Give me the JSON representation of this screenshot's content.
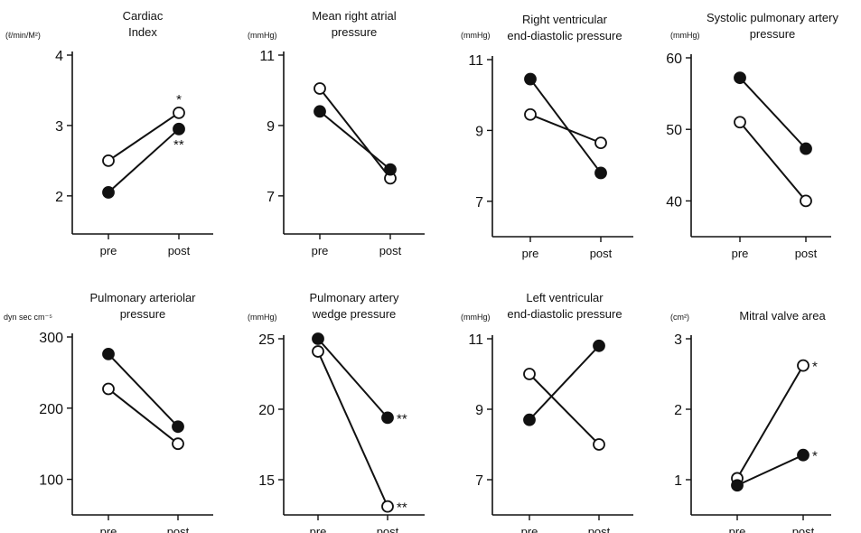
{
  "chart_data": [
    {
      "type": "line",
      "title": "Cardiac Index",
      "title_lines": [
        "Cardiac",
        "Index"
      ],
      "unit": "(ℓ/min/M²)",
      "x": [
        "pre",
        "post"
      ],
      "ylim": [
        1.6,
        4
      ],
      "yticks": [
        2,
        3,
        4
      ],
      "series": [
        {
          "marker": "open",
          "values": [
            2.5,
            3.18
          ],
          "annotation": "*"
        },
        {
          "marker": "filled",
          "values": [
            2.05,
            2.95
          ],
          "annotation": "**"
        }
      ]
    },
    {
      "type": "line",
      "title": "Mean right atrial pressure",
      "title_lines": [
        "Mean right atrial",
        "pressure"
      ],
      "unit": "(mmHg)",
      "x": [
        "pre",
        "post"
      ],
      "ylim": [
        6.2,
        11
      ],
      "yticks": [
        7,
        9,
        11
      ],
      "series": [
        {
          "marker": "open",
          "values": [
            10.05,
            7.5
          ],
          "annotation": ""
        },
        {
          "marker": "filled",
          "values": [
            9.4,
            7.75
          ],
          "annotation": ""
        }
      ]
    },
    {
      "type": "line",
      "title": "Right ventricular end-diastolic pressure",
      "title_lines": [
        "Right ventricular",
        "end-diastolic pressure"
      ],
      "unit": "(mmHg)",
      "x": [
        "pre",
        "post"
      ],
      "ylim": [
        6.0,
        11
      ],
      "yticks": [
        7,
        9,
        11
      ],
      "series": [
        {
          "marker": "open",
          "values": [
            9.45,
            8.65
          ],
          "annotation": ""
        },
        {
          "marker": "filled",
          "values": [
            10.45,
            7.8
          ],
          "annotation": ""
        }
      ]
    },
    {
      "type": "line",
      "title": "Systolic pulmonary artery pressure",
      "title_lines": [
        "Systolic pulmonary artery",
        "pressure"
      ],
      "unit": "(mmHg)",
      "x": [
        "pre",
        "post"
      ],
      "ylim": [
        35,
        60
      ],
      "yticks": [
        40,
        50,
        60
      ],
      "series": [
        {
          "marker": "open",
          "values": [
            51,
            40
          ],
          "annotation": ""
        },
        {
          "marker": "filled",
          "values": [
            57.2,
            47.3
          ],
          "annotation": ""
        }
      ]
    },
    {
      "type": "line",
      "title": "Pulmonary arteriolar pressure",
      "title_lines": [
        "Pulmonary arteriolar",
        "pressure"
      ],
      "unit": "dyn sec cm⁻⁵",
      "x": [
        "pre",
        "post"
      ],
      "ylim": [
        50,
        300
      ],
      "yticks": [
        100,
        200,
        300
      ],
      "series": [
        {
          "marker": "open",
          "values": [
            227,
            150
          ],
          "annotation": ""
        },
        {
          "marker": "filled",
          "values": [
            276,
            174
          ],
          "annotation": ""
        }
      ]
    },
    {
      "type": "line",
      "title": "Pulmonary artery wedge pressure",
      "title_lines": [
        "Pulmonary artery",
        "wedge pressure"
      ],
      "unit": "(mmHg)",
      "x": [
        "pre",
        "post"
      ],
      "ylim": [
        12.5,
        25
      ],
      "yticks": [
        15,
        20,
        25
      ],
      "series": [
        {
          "marker": "open",
          "values": [
            24.1,
            13.1
          ],
          "annotation": "**"
        },
        {
          "marker": "filled",
          "values": [
            25,
            19.4
          ],
          "annotation": "**"
        }
      ]
    },
    {
      "type": "line",
      "title": "Left ventricular end-diastolic pressure",
      "title_lines": [
        "Left ventricular",
        "end-diastolic pressure"
      ],
      "unit": "(mmHg)",
      "x": [
        "pre",
        "post"
      ],
      "ylim": [
        6.0,
        11
      ],
      "yticks": [
        7,
        9,
        11
      ],
      "series": [
        {
          "marker": "open",
          "values": [
            10,
            8
          ],
          "annotation": ""
        },
        {
          "marker": "filled",
          "values": [
            8.7,
            10.8
          ],
          "annotation": ""
        }
      ]
    },
    {
      "type": "line",
      "title": "Mitral valve area",
      "title_lines": [
        "Mitral valve area"
      ],
      "unit": "(cm²)",
      "x": [
        "pre",
        "post"
      ],
      "ylim": [
        0.5,
        3
      ],
      "yticks": [
        1,
        2,
        3
      ],
      "series": [
        {
          "marker": "open",
          "values": [
            1.02,
            2.62
          ],
          "annotation": "*"
        },
        {
          "marker": "filled",
          "values": [
            0.92,
            1.35
          ],
          "annotation": "*"
        }
      ]
    }
  ]
}
